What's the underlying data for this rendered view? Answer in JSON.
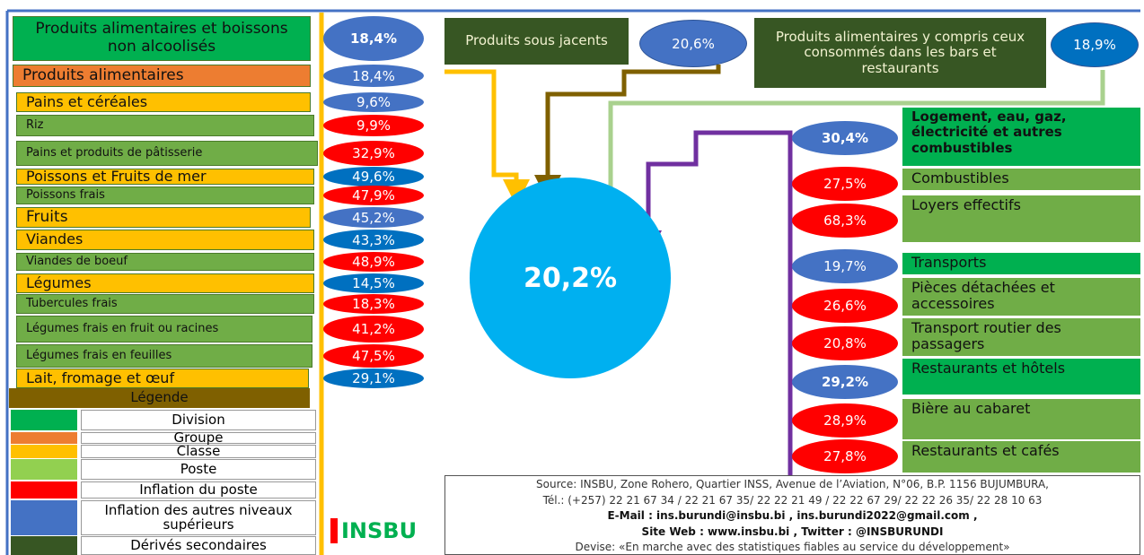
{
  "left_items": [
    {
      "label": "Produits alimentaires et boissons  non alcoolisés",
      "value": "18,4%",
      "color": "#00b050",
      "value_color": "#4472c4"
    },
    {
      "label": "Produits alimentaires",
      "value": "18,4%",
      "color": "#ed7d31",
      "value_color": "#4472c4"
    },
    {
      "label": "Pains et céréales",
      "value": "9,6%",
      "color": "#ffc000",
      "value_color": "#4472c4"
    },
    {
      "label": "Riz",
      "value": "9,9%",
      "color": "#70ad47",
      "value_color": "#ff0000"
    },
    {
      "label": "Pains et produits de pâtisserie",
      "value": "32,9%",
      "color": "#70ad47",
      "value_color": "#ff0000"
    },
    {
      "label": "Poissons et Fruits de mer",
      "value": "49,6%",
      "color": "#ffc000",
      "value_color": "#0070c0"
    },
    {
      "label": "Poissons frais",
      "value": "47,9%",
      "color": "#70ad47",
      "value_color": "#ff0000"
    },
    {
      "label": "Fruits",
      "value": "45,2%",
      "color": "#ffc000",
      "value_color": "#4472c4"
    },
    {
      "label": "Viandes",
      "value": "43,3%",
      "color": "#ffc000",
      "value_color": "#0070c0"
    },
    {
      "label": "Viandes de boeuf",
      "value": "48,9%",
      "color": "#70ad47",
      "value_color": "#ff0000"
    },
    {
      "label": "Légumes",
      "value": "14,5%",
      "color": "#ffc000",
      "value_color": "#0070c0"
    },
    {
      "label": "Tubercules frais",
      "value": "18,3%",
      "color": "#70ad47",
      "value_color": "#ff0000"
    },
    {
      "label": "Légumes frais en fruit ou racines",
      "value": "41,2%",
      "color": "#70ad47",
      "value_color": "#ff0000"
    },
    {
      "label": "Légumes frais en feuilles",
      "value": "47,5%",
      "color": "#70ad47",
      "value_color": "#ff0000"
    },
    {
      "label": "Lait, fromage et œuf",
      "value": "29,1%",
      "color": "#ffc000",
      "value_color": "#0070c0"
    }
  ],
  "top_items": [
    {
      "label": "Produits sous jacents",
      "value": "20,6%",
      "color": "#375623",
      "value_color": "#4472c4"
    },
    {
      "label": "Produits alimentaires y compris ceux  consommés dans les bars et restaurants",
      "value": "18,9%",
      "color": "#375623",
      "value_color": "#0070c0"
    }
  ],
  "center_value": "20,2%",
  "right_items": [
    {
      "label": "Logement, eau, gaz, électricité et autres combustibles",
      "value": "30,4%",
      "color": "#00b050",
      "value_color": "#4472c4"
    },
    {
      "label": "Combustibles",
      "value": "27,5%",
      "color": "#70ad47",
      "value_color": "#ff0000"
    },
    {
      "label": "Loyers effectifs",
      "value": "68,3%",
      "color": "#70ad47",
      "value_color": "#ff0000"
    },
    {
      "label": "Transports",
      "value": "19,7%",
      "color": "#00b050",
      "value_color": "#4472c4"
    },
    {
      "label": "Pièces détachées et accessoires",
      "value": "26,6%",
      "color": "#70ad47",
      "value_color": "#ff0000"
    },
    {
      "label": "Transport routier des passagers",
      "value": "20,8%",
      "color": "#70ad47",
      "value_color": "#ff0000"
    },
    {
      "label": "Restaurants et hôtels",
      "value": "29,2%",
      "color": "#00b050",
      "value_color": "#4472c4"
    },
    {
      "label": "Bière au cabaret",
      "value": "28,9%",
      "color": "#70ad47",
      "value_color": "#ff0000"
    },
    {
      "label": "Restaurants et  cafés",
      "value": "27,8%",
      "color": "#70ad47",
      "value_color": "#ff0000"
    }
  ],
  "legend": {
    "title": "Légende",
    "entries": [
      {
        "label": "Division",
        "color": "#00b050"
      },
      {
        "label": "Groupe",
        "color": "#ed7d31"
      },
      {
        "label": "Classe",
        "color": "#ffc000"
      },
      {
        "label": "Poste",
        "color": "#92d050"
      },
      {
        "label": "Inflation du  poste",
        "color": "#ff0000"
      },
      {
        "label": "Inflation des autres niveaux supérieurs",
        "color": "#4472c4"
      },
      {
        "label": "Dérivés secondaires",
        "color": "#375623"
      }
    ]
  },
  "logo": "INSBU",
  "source": [
    "Source: INSBU, Zone Rohero, Quartier INSS, Avenue de l’Aviation, N°06, B.P. 1156 BUJUMBURA,",
    "Tél.: (+257) 22 21 67 34 /  22 21 67 35/ 22 22 21 49 / 22 22 67 29/ 22 22 26 35/ 22 28 10 63",
    "E-Mail : ins.burundi@insbu.bi  , ins.burundi2022@gmail.com ,",
    "Site Web : www.insbu.bi  , Twitter : @INSBURUNDI",
    "Devise: «En marche avec des statistiques fiables au service du développement»"
  ]
}
